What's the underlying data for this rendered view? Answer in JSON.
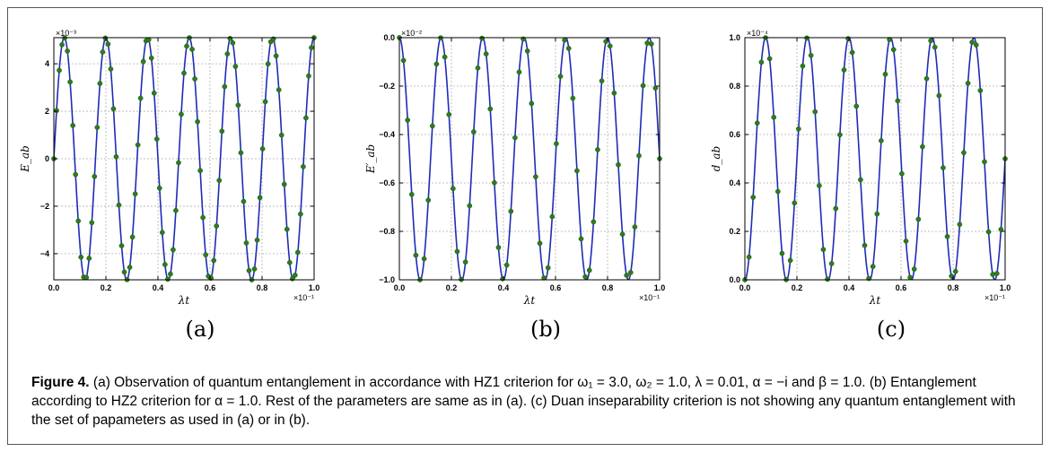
{
  "figure": {
    "caption_lead": "Figure 4.",
    "caption_text": " (a) Observation of quantum entanglement in accordance with HZ1 criterion for ω₁ = 3.0, ω₂ = 1.0, λ = 0.01, α = −i and β = 1.0. (b) Entanglement according to HZ2 criterion for α = 1.0. Rest of the parameters are same as in (a). (c) Duan inseparability criterion is not showing any quantum entanglement with the set of papameters as used in (a) or in (b).",
    "panel_labels": [
      "(a)",
      "(b)",
      "(c)"
    ]
  },
  "colors": {
    "line": "#1f2bb8",
    "marker": "#2e7d1a",
    "grid": "#b0b0b0"
  },
  "chart_data": [
    {
      "type": "line",
      "title": "",
      "xlabel": "λt",
      "ylabel": "E_ab",
      "x_multiplier": "×10⁻¹",
      "y_multiplier": "×10⁻³",
      "xlim": [
        0.0,
        1.0
      ],
      "ylim": [
        -5.1,
        5.1
      ],
      "xticks": [
        "0.0",
        "0.2",
        "0.4",
        "0.6",
        "0.8",
        "1.0"
      ],
      "yticks": [
        "−4",
        "−2",
        "0",
        "2",
        "4"
      ],
      "ytick_values": [
        -4,
        -2,
        0,
        2,
        4
      ],
      "grid": true,
      "series": [
        {
          "style": "line",
          "function": "amp*sin(2*pi*f*x)",
          "amp": 5.1,
          "f": 6.25
        },
        {
          "style": "markers",
          "x_start": 0.0,
          "x_end": 1.0,
          "count": 97
        }
      ]
    },
    {
      "type": "line",
      "title": "",
      "xlabel": "λt",
      "ylabel": "E′_ab",
      "x_multiplier": "×10⁻¹",
      "y_multiplier": "×10⁻²",
      "xlim": [
        0.0,
        1.0
      ],
      "ylim": [
        -1.0,
        0.0
      ],
      "xticks": [
        "0.0",
        "0.2",
        "0.4",
        "0.6",
        "0.8",
        "1.0"
      ],
      "yticks": [
        "−1.0",
        "−0.8",
        "−0.6",
        "−0.4",
        "−0.2",
        "0.0"
      ],
      "ytick_values": [
        -1.0,
        -0.8,
        -0.6,
        -0.4,
        -0.2,
        0.0
      ],
      "grid": true,
      "series": [
        {
          "style": "line",
          "function": "-(1-cos(2*pi*f*x))/2",
          "f": 6.25
        },
        {
          "style": "markers",
          "x_start": 0.0,
          "x_end": 1.0,
          "count": 64
        }
      ]
    },
    {
      "type": "line",
      "title": "",
      "xlabel": "λt",
      "ylabel": "d_ab",
      "x_multiplier": "×10⁻¹",
      "y_multiplier": "×10⁻⁴",
      "xlim": [
        0.0,
        1.0
      ],
      "ylim": [
        0.0,
        1.0
      ],
      "xticks": [
        "0.0",
        "0.2",
        "0.4",
        "0.6",
        "0.8",
        "1.0"
      ],
      "yticks": [
        "0.0",
        "0.2",
        "0.4",
        "0.6",
        "0.8",
        "1.0"
      ],
      "ytick_values": [
        0.0,
        0.2,
        0.4,
        0.6,
        0.8,
        1.0
      ],
      "grid": true,
      "series": [
        {
          "style": "line",
          "function": "(1-cos(2*pi*f*x))/2",
          "f": 6.25
        },
        {
          "style": "markers",
          "x_start": 0.0,
          "x_end": 1.0,
          "count": 64
        }
      ]
    }
  ]
}
